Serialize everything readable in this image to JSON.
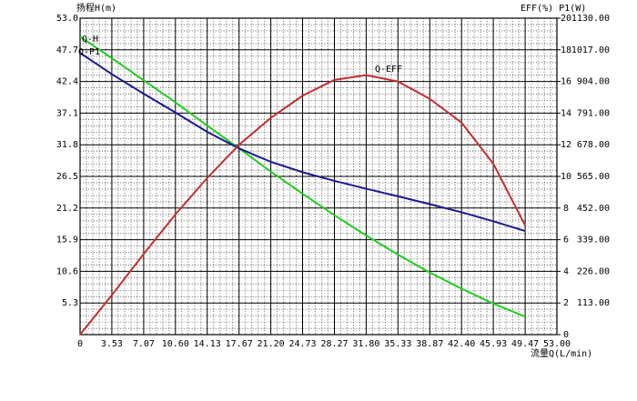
{
  "chart_data": {
    "type": "line",
    "y_label": "扬程H(m)",
    "y2_label": "EFF(%) P1(W)",
    "x_label": "流量Q(L/min)",
    "x": [
      0,
      3.53,
      7.07,
      10.6,
      14.13,
      17.67,
      21.2,
      24.73,
      28.27,
      31.8,
      35.33,
      38.87,
      42.4,
      45.93,
      49.47
    ],
    "series": [
      {
        "name": "Q-H",
        "color": "#22cc22",
        "axis": "y",
        "values": [
          49.9,
          46.3,
          42.6,
          38.9,
          35.0,
          31.2,
          27.3,
          23.6,
          20.0,
          16.6,
          13.4,
          10.4,
          7.7,
          5.2,
          3.0
        ]
      },
      {
        "name": "Q-P1",
        "color": "#1a1a8c",
        "axis": "y3",
        "values": [
          1006,
          930,
          860,
          793,
          724,
          665,
          617,
          580,
          549,
          521,
          494,
          466,
          437,
          405,
          370
        ]
      },
      {
        "name": "Q-EFF",
        "color": "#c03030",
        "axis": "y2",
        "values": [
          0,
          2.5,
          5.1,
          7.6,
          9.9,
          12.0,
          13.7,
          15.1,
          16.1,
          16.4,
          16.0,
          14.9,
          13.4,
          10.8,
          6.9
        ]
      }
    ],
    "xlim": [
      0,
      53
    ],
    "xticks": [
      0,
      3.53,
      7.07,
      {
        "value": 10.6,
        "label": "10.60"
      },
      14.13,
      17.67,
      {
        "value": 21.2,
        "label": "21.20"
      },
      24.73,
      28.27,
      {
        "value": 31.8,
        "label": "31.80"
      },
      35.33,
      38.87,
      {
        "value": 42.4,
        "label": "42.40"
      },
      45.93,
      49.47,
      {
        "value": 53,
        "label": "53.00"
      }
    ],
    "ylim": [
      0,
      53
    ],
    "yticks": [
      5.3,
      10.6,
      15.9,
      21.2,
      26.5,
      31.8,
      37.1,
      42.4,
      47.7,
      {
        "value": 53,
        "label": "53.0"
      }
    ],
    "y2lim": [
      0,
      20
    ],
    "y2ticks": [
      0,
      2,
      4,
      6,
      8,
      10,
      12,
      14,
      16,
      18,
      20
    ],
    "y3lim": [
      0,
      1130
    ],
    "y3ticks": [
      {
        "value": 113,
        "label": "113.00"
      },
      {
        "value": 226,
        "label": "226.00"
      },
      {
        "value": 339,
        "label": "339.00"
      },
      {
        "value": 452,
        "label": "452.00"
      },
      {
        "value": 565,
        "label": "565.00"
      },
      {
        "value": 678,
        "label": "678.00"
      },
      {
        "value": 791,
        "label": "791.00"
      },
      {
        "value": 904,
        "label": "904.00"
      },
      {
        "value": 1017,
        "label": "1017.00"
      },
      {
        "value": 1130,
        "label": "1130.00"
      }
    ],
    "grid": true
  }
}
